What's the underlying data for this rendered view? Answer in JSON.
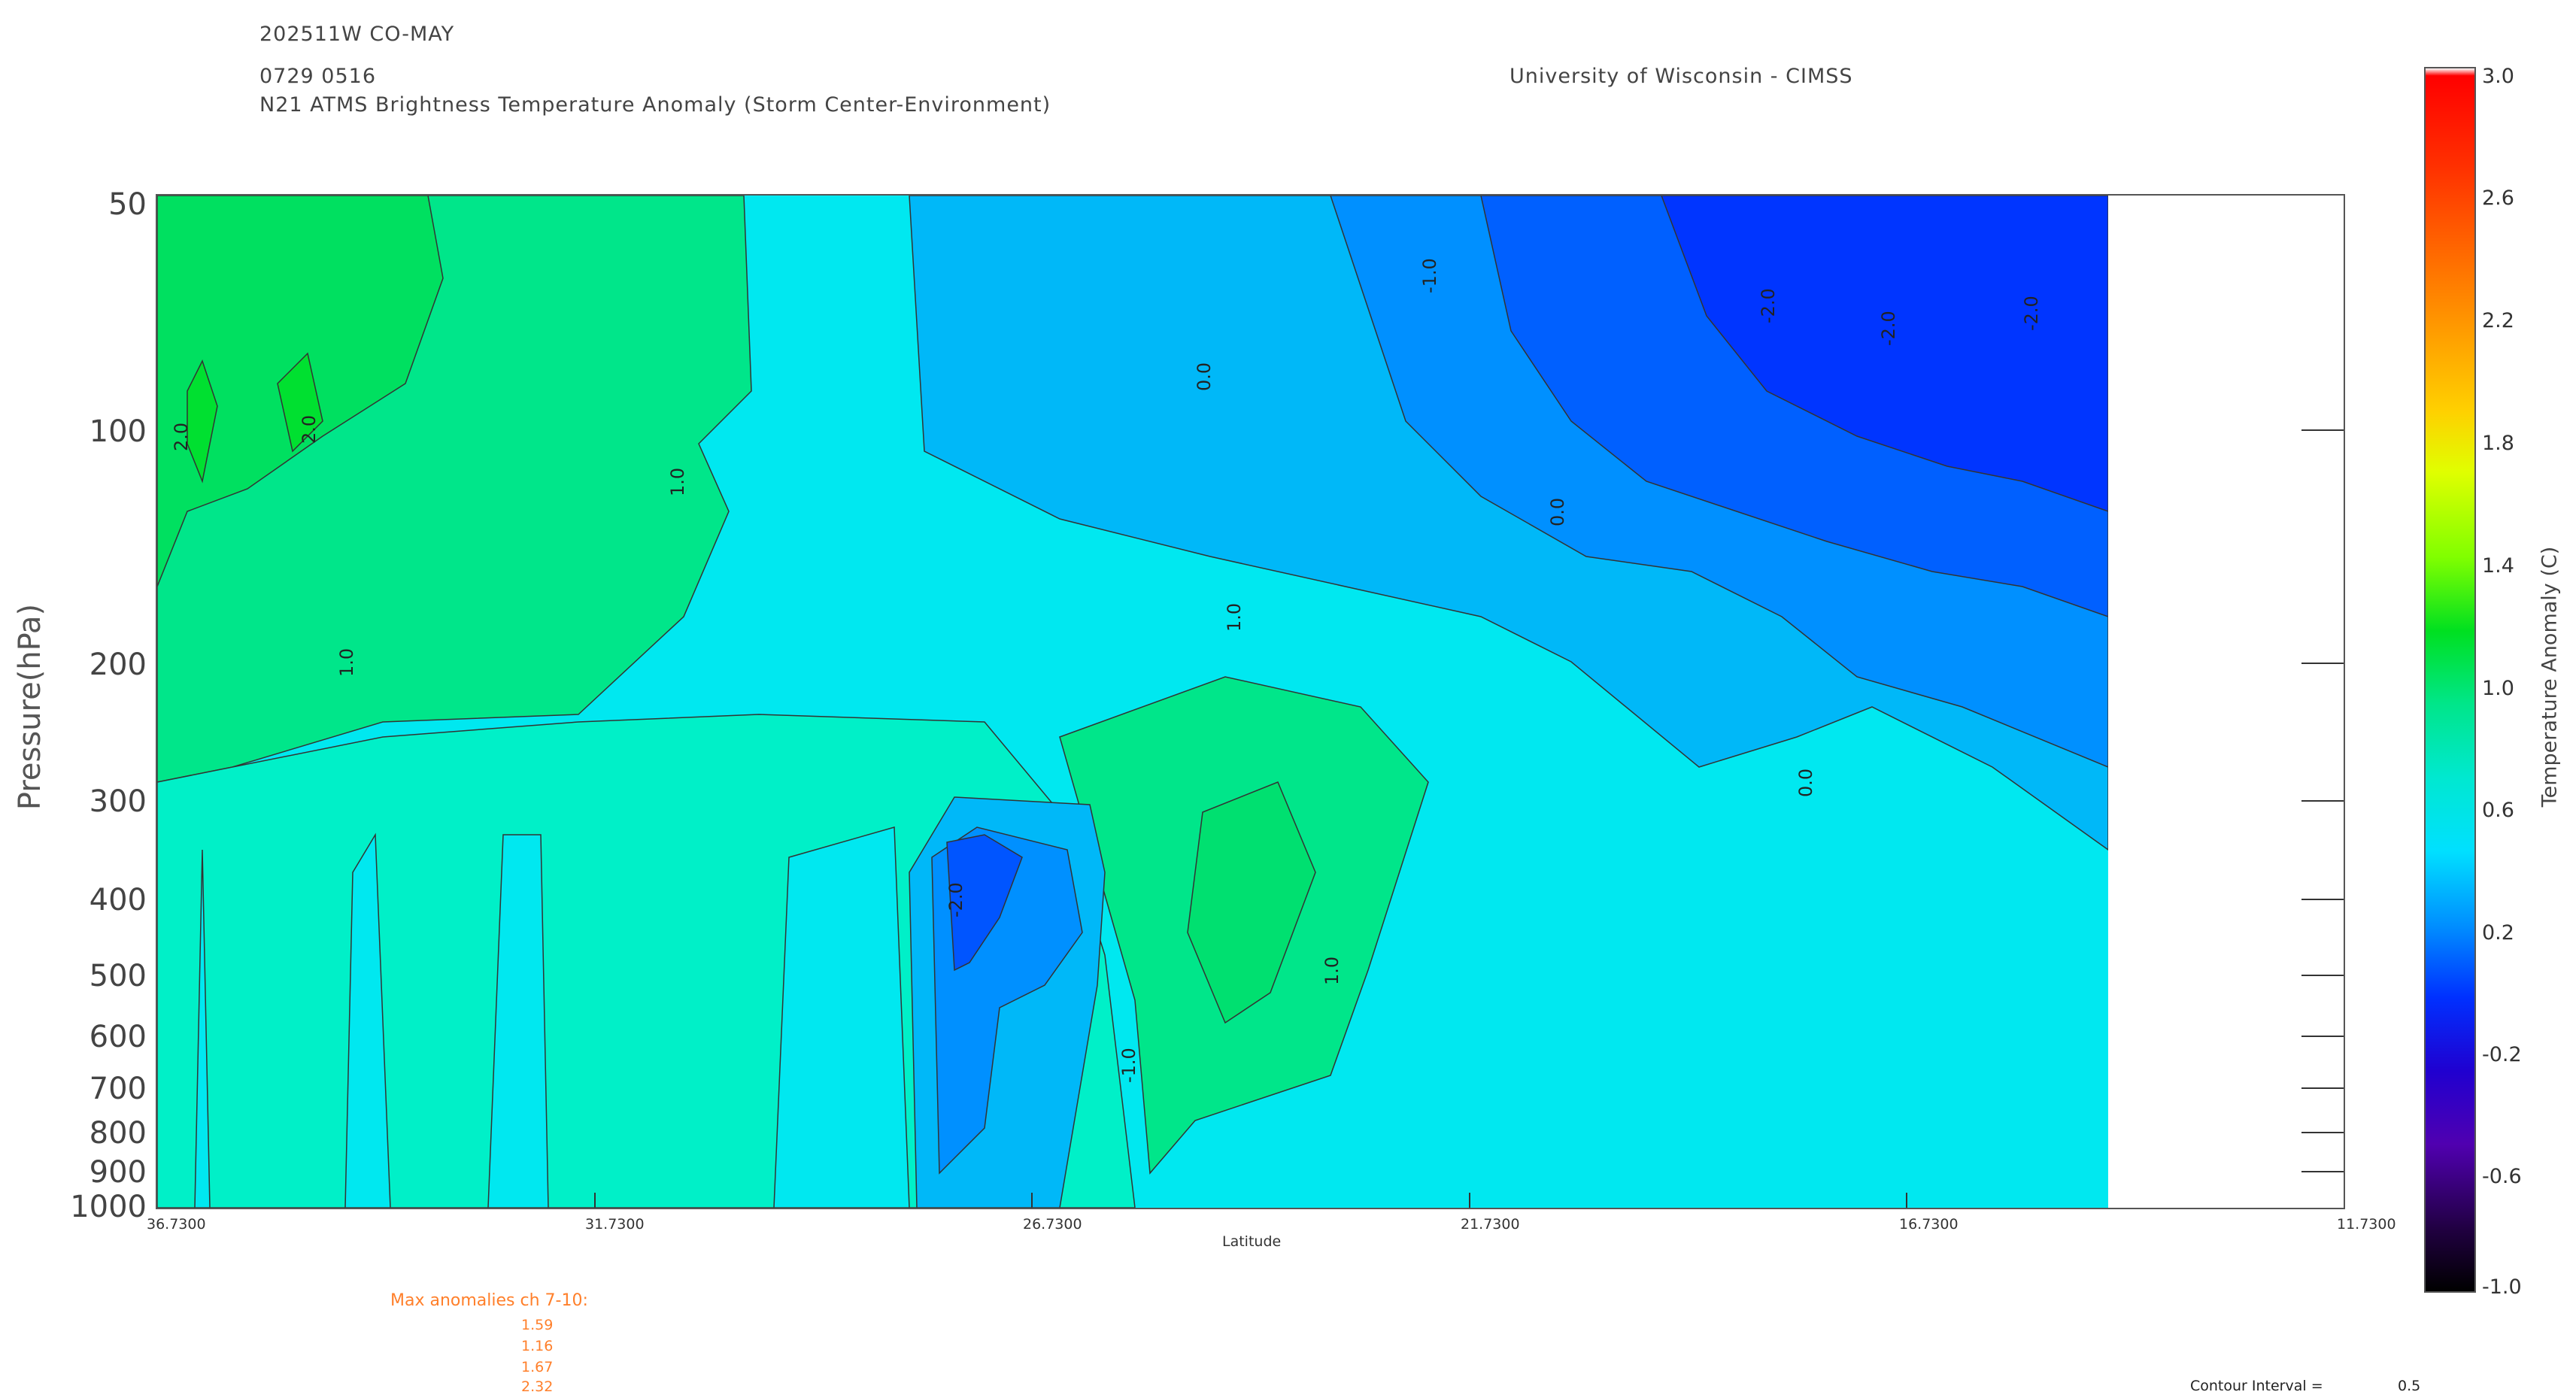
{
  "header": {
    "line1": "202511W CO-MAY",
    "line2": "0729 0516",
    "line3": "N21 ATMS Brightness Temperature Anomaly (Storm Center-Environment)",
    "institution": "University of Wisconsin - CIMSS"
  },
  "chart_data": {
    "type": "contour",
    "ylabel": "Pressure(hPa)",
    "xlabel": "Latitude",
    "yscale": "log",
    "ylim": [
      1000,
      50
    ],
    "xlim": [
      36.73,
      11.73
    ],
    "y_ticks": [
      "50",
      "100",
      "200",
      "300",
      "400",
      "500",
      "600",
      "700",
      "800",
      "900",
      "1000"
    ],
    "x_ticks": [
      "36.7300",
      "31.7300",
      "26.7300",
      "21.7300",
      "16.7300",
      "11.7300"
    ],
    "data_extent_x": [
      36.73,
      14.5
    ],
    "contour_labels": [
      "-2.0",
      "-1.0",
      "0.0",
      "1.0",
      "2.0"
    ],
    "colorbar": {
      "label": "Temperature Anomaly (C)",
      "ticks": [
        "3.0",
        "2.6",
        "2.2",
        "1.8",
        "1.4",
        "1.0",
        "0.6",
        "0.2",
        "-0.2",
        "-0.6",
        "-1.0"
      ],
      "range": [
        -1.0,
        3.0
      ]
    },
    "bands": [
      {
        "region": "upper-left 50-200 hPa, 36.7-28.7",
        "level": "1.0",
        "color": "#00e67a"
      },
      {
        "region": "core 36.5-35.0 at 80-150 hPa",
        "level": "2.0",
        "color": "#00e030"
      },
      {
        "region": "lower layer 300-1000 hPa",
        "level": "0.0",
        "color": "#00e8f0"
      },
      {
        "region": "mid column 24.7-22.7, 300-900 hPa",
        "level": "1.0",
        "color": "#00e68a"
      },
      {
        "region": "cold pocket 28.0-27.2, 350-800 hPa",
        "level": "-2.0",
        "color": "#0055ff"
      },
      {
        "region": "upper right 50-300 hPa, 22.7-14.5",
        "level": "-1.0",
        "color": "#0090ff"
      },
      {
        "region": "far right core 19.0-14.5, 50-200 hPa",
        "level": "-2.0",
        "color": "#0030ff"
      }
    ]
  },
  "footer": {
    "max_title": "Max anomalies ch 7-10:",
    "max_values": [
      "1.59",
      "1.16",
      "1.67",
      "2.32"
    ],
    "contour_label": "Contour Interval =",
    "contour_value": "0.5"
  },
  "colors": {
    "accent_orange": "#ff7f2a"
  }
}
